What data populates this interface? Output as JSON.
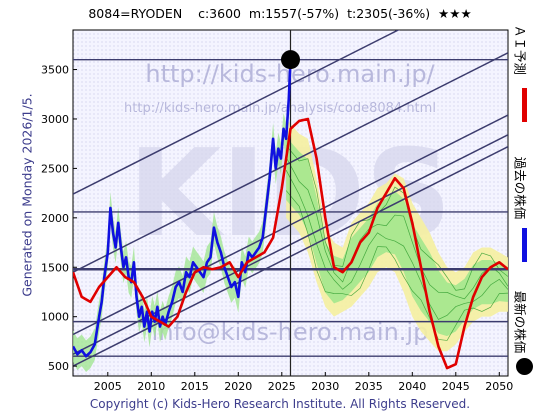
{
  "header": {
    "text": "8084=RYODEN    c:3600  m:1557(-57%)  t:2305(-36%)  ★★★"
  },
  "side_label": "Generated on Monday 2026/1/5.",
  "footer": "Copyright (c) Kids-Hero Research Institute. All Rights Reserved.",
  "watermarks": {
    "url_top": "http://kids-hero.main.jp/",
    "url_mid": "http://kids-hero.main.jp/analysis/code8084.html",
    "big": "KIDS",
    "email": "info@kids-hero.main.jp"
  },
  "legend": {
    "forecast": "ＡＩ予測",
    "past": "過去の株価",
    "latest": "最新の株価"
  },
  "colors": {
    "past": "#1010e0",
    "forecast": "#e00000",
    "latest_dot": "#000000",
    "bands": "#3c3c6e",
    "green_fill": "#9ee68c",
    "yellow_fill": "#f5f0a0"
  },
  "chart_data": {
    "type": "line",
    "title": "8084=RYODEN",
    "xlim": [
      2001,
      2051
    ],
    "ylim": [
      400,
      3900
    ],
    "x_ticks": [
      2005,
      2010,
      2015,
      2020,
      2025,
      2030,
      2035,
      2040,
      2045,
      2050
    ],
    "y_ticks": [
      500,
      1000,
      1500,
      2000,
      2500,
      3000,
      3500
    ],
    "current": {
      "label": "c",
      "value": 3600,
      "year": 2026.0
    },
    "forecast_min": {
      "label": "m",
      "value": 1557,
      "change": "-57%"
    },
    "forecast_target": {
      "label": "t",
      "value": 2305,
      "change": "-36%"
    },
    "horizontal_levels": [
      3600,
      2060,
      1480,
      950,
      600
    ],
    "diagonal_bands": [
      {
        "x0": 2001,
        "y0": 2240,
        "x1": 2051,
        "y1": 4460
      },
      {
        "x0": 2001,
        "y0": 1450,
        "x1": 2051,
        "y1": 3670
      },
      {
        "x0": 2001,
        "y0": 820,
        "x1": 2051,
        "y1": 3040
      },
      {
        "x0": 2001,
        "y0": 620,
        "x1": 2051,
        "y1": 2840
      },
      {
        "x0": 2001,
        "y0": 500,
        "x1": 2051,
        "y1": 2720
      }
    ],
    "series": [
      {
        "name": "過去の株価",
        "color": "#1010e0",
        "x": [
          2001,
          2001.5,
          2002,
          2002.5,
          2003,
          2003.5,
          2004,
          2004.3,
          2004.6,
          2005,
          2005.3,
          2005.6,
          2005.9,
          2006.2,
          2006.5,
          2006.8,
          2007.1,
          2007.4,
          2007.7,
          2008,
          2008.3,
          2008.6,
          2008.9,
          2009.2,
          2009.5,
          2009.8,
          2010.1,
          2010.4,
          2010.7,
          2011,
          2011.3,
          2011.6,
          2012,
          2012.4,
          2012.8,
          2013.2,
          2013.6,
          2014,
          2014.4,
          2014.8,
          2015.2,
          2015.6,
          2016,
          2016.4,
          2016.8,
          2017.2,
          2017.6,
          2018,
          2018.4,
          2018.8,
          2019.2,
          2019.6,
          2020,
          2020.4,
          2020.8,
          2021.2,
          2021.6,
          2022,
          2022.4,
          2022.8,
          2023.2,
          2023.6,
          2024,
          2024.3,
          2024.6,
          2024.9,
          2025.2,
          2025.5,
          2025.8,
          2026.0
        ],
        "y": [
          700,
          620,
          660,
          600,
          640,
          720,
          1000,
          1150,
          1400,
          1650,
          2100,
          1850,
          1700,
          1950,
          1700,
          1500,
          1600,
          1400,
          1350,
          1550,
          1200,
          1000,
          1100,
          900,
          1050,
          850,
          1050,
          950,
          1100,
          900,
          1000,
          920,
          1050,
          1150,
          1300,
          1350,
          1250,
          1450,
          1400,
          1550,
          1500,
          1450,
          1400,
          1550,
          1600,
          1900,
          1750,
          1650,
          1500,
          1400,
          1300,
          1350,
          1200,
          1550,
          1450,
          1650,
          1600,
          1650,
          1700,
          1800,
          2100,
          2400,
          2800,
          2500,
          2700,
          2600,
          2900,
          2800,
          3200,
          3600
        ]
      },
      {
        "name": "ＡＩ予測",
        "color": "#e00000",
        "x": [
          2001,
          2002,
          2003,
          2004,
          2005,
          2006,
          2007,
          2008,
          2009,
          2010,
          2011,
          2012,
          2013,
          2014,
          2015,
          2016,
          2017,
          2018,
          2019,
          2020,
          2021,
          2022,
          2023,
          2024,
          2025,
          2026,
          2027,
          2028,
          2029,
          2030,
          2031,
          2032,
          2033,
          2034,
          2035,
          2036,
          2037,
          2038,
          2039,
          2040,
          2041,
          2042,
          2043,
          2044,
          2045,
          2046,
          2047,
          2048,
          2049,
          2050,
          2051
        ],
        "y": [
          1450,
          1200,
          1150,
          1300,
          1400,
          1500,
          1400,
          1350,
          1200,
          1000,
          950,
          900,
          1000,
          1250,
          1450,
          1500,
          1480,
          1500,
          1550,
          1400,
          1550,
          1600,
          1650,
          1800,
          2300,
          2900,
          2980,
          3000,
          2600,
          2000,
          1500,
          1450,
          1550,
          1750,
          1850,
          2100,
          2250,
          2400,
          2300,
          1950,
          1500,
          1050,
          700,
          480,
          520,
          900,
          1200,
          1400,
          1500,
          1550,
          1480
        ]
      }
    ],
    "forecast_band_upper": [
      [
        2025.5,
        3000
      ],
      [
        2027,
        2850
      ],
      [
        2028,
        2800
      ],
      [
        2029,
        2400
      ],
      [
        2030,
        1900
      ],
      [
        2031,
        1750
      ],
      [
        2032,
        1700
      ],
      [
        2033,
        1950
      ],
      [
        2034,
        2050
      ],
      [
        2035,
        2150
      ],
      [
        2036,
        2300
      ],
      [
        2037,
        2350
      ],
      [
        2038,
        2450
      ],
      [
        2039,
        2400
      ],
      [
        2040,
        2150
      ],
      [
        2041,
        2000
      ],
      [
        2042,
        1850
      ],
      [
        2043,
        1650
      ],
      [
        2044,
        1500
      ],
      [
        2045,
        1450
      ],
      [
        2046,
        1500
      ],
      [
        2047,
        1650
      ],
      [
        2048,
        1700
      ],
      [
        2049,
        1700
      ],
      [
        2050,
        1650
      ],
      [
        2051,
        1600
      ]
    ],
    "forecast_band_lower": [
      [
        2025.5,
        2000
      ],
      [
        2027,
        1850
      ],
      [
        2028,
        1650
      ],
      [
        2029,
        1350
      ],
      [
        2030,
        1100
      ],
      [
        2031,
        1000
      ],
      [
        2032,
        1050
      ],
      [
        2033,
        1100
      ],
      [
        2034,
        1200
      ],
      [
        2035,
        1300
      ],
      [
        2036,
        1450
      ],
      [
        2037,
        1500
      ],
      [
        2038,
        1450
      ],
      [
        2039,
        1250
      ],
      [
        2040,
        1000
      ],
      [
        2041,
        850
      ],
      [
        2042,
        750
      ],
      [
        2043,
        650
      ],
      [
        2044,
        650
      ],
      [
        2045,
        720
      ],
      [
        2046,
        850
      ],
      [
        2047,
        950
      ],
      [
        2048,
        1000
      ],
      [
        2049,
        1000
      ],
      [
        2050,
        1050
      ],
      [
        2051,
        1050
      ]
    ]
  }
}
